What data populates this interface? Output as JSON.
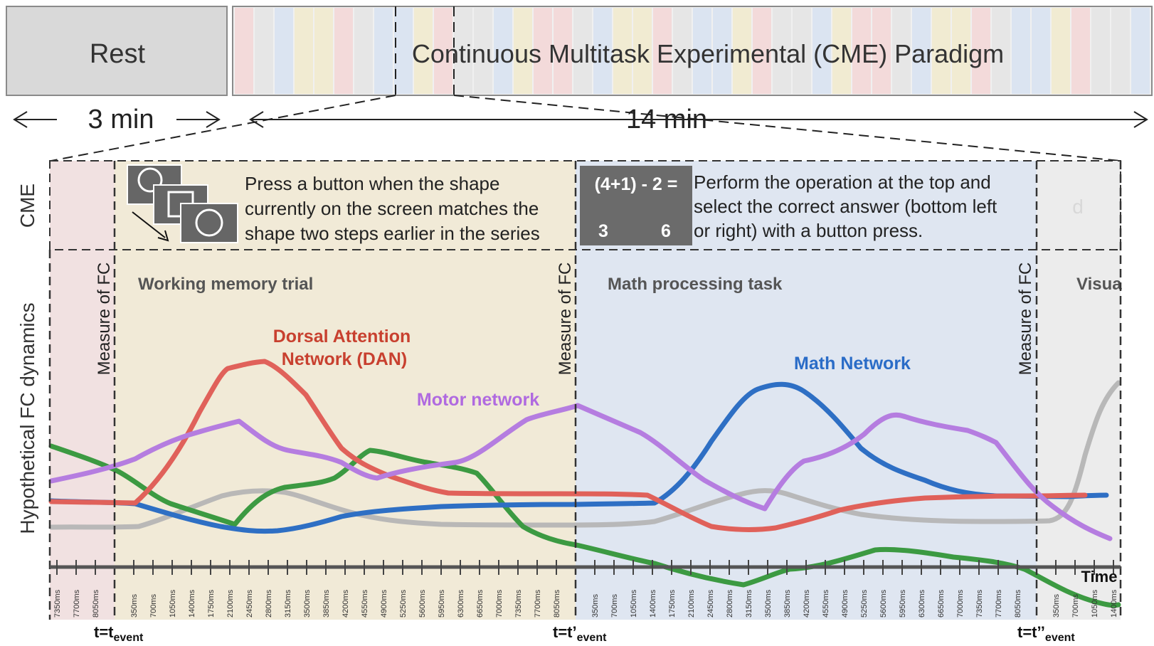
{
  "header": {
    "rest_label": "Rest",
    "cme_label": "Continuous Multitask Experimental (CME) Paradigm",
    "rest_duration": "3 min",
    "cme_duration": "14 min"
  },
  "rows": {
    "cme_row_label": "CME",
    "dynamics_row_label": "Hypothetical FC dynamics"
  },
  "tasks": {
    "wm_instruction": [
      "Press a button when the shape",
      "currently on the screen matches the",
      "shape two steps earlier in the series"
    ],
    "wm_title": "Working memory trial",
    "math_equation": "(4+1) - 2 =",
    "math_answer_left": "3",
    "math_answer_right": "6",
    "math_instruction": [
      "Perform the operation at the top and",
      "select the correct answer (bottom left",
      "or right) with a button press."
    ],
    "math_title": "Math processing task",
    "visual_title_partial": "Visua",
    "faded_letter": "d"
  },
  "measure_label": "Measure of FC",
  "networks": {
    "dan_line1": "Dorsal Attention",
    "dan_line2": "Network (DAN)",
    "motor": "Motor network",
    "math": "Math Network"
  },
  "axis": {
    "time_label": "Time",
    "ticks_rest": [
      "7350ms",
      "7700ms",
      "8050ms"
    ],
    "ticks_wm": [
      "350ms",
      "700ms",
      "1050ms",
      "1400ms",
      "1750ms",
      "2100ms",
      "2450ms",
      "2800ms",
      "3150ms",
      "3500ms",
      "3850ms",
      "4200ms",
      "4550ms",
      "4900ms",
      "5250ms",
      "5600ms",
      "5950ms",
      "6300ms",
      "6650ms",
      "7000ms",
      "7350ms",
      "7700ms",
      "8050ms"
    ],
    "ticks_math": [
      "350ms",
      "700ms",
      "1050ms",
      "1400ms",
      "1750ms",
      "2100ms",
      "2450ms",
      "2800ms",
      "3150ms",
      "3500ms",
      "3850ms",
      "4200ms",
      "4550ms",
      "4900ms",
      "5250ms",
      "5600ms",
      "5950ms",
      "6300ms",
      "6650ms",
      "7000ms",
      "7350ms",
      "7700ms",
      "8050ms"
    ],
    "ticks_vis": [
      "350ms",
      "700ms",
      "1050ms",
      "1400ms"
    ]
  },
  "events": {
    "e1": "t=t",
    "e2": "t=t’",
    "e3": "t=t’’",
    "sub": "event"
  },
  "colors": {
    "dan": "#e0615a",
    "motor": "#b57de0",
    "math": "#2e6fc4",
    "green": "#3c9a42",
    "gray": "#b5b5b5",
    "rest_bg": "#f1e1e1",
    "wm_bg": "#f1ead7",
    "math_bg": "#dfe6f1",
    "vis_bg": "#ececec",
    "dan_label": "#c8402f",
    "motor_label": "#b06ae0",
    "math_label": "#2a6cc7"
  }
}
